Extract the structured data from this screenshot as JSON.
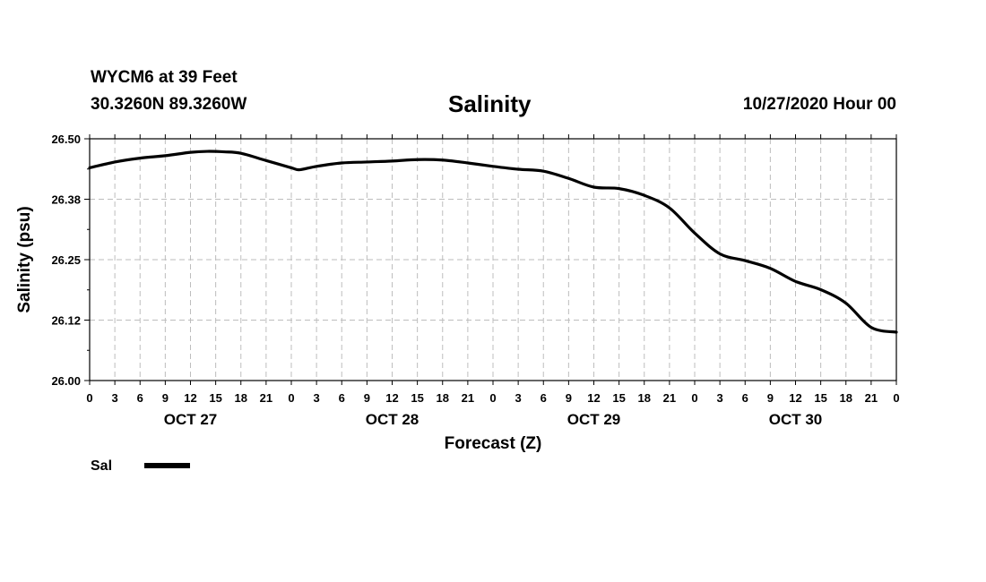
{
  "header": {
    "station": "WYCM6 at 39 Feet",
    "coords": "30.3260N 89.3260W",
    "title": "Salinity",
    "runtime": "10/27/2020 Hour 00"
  },
  "chart_data": {
    "type": "line",
    "title": "Salinity",
    "xlabel": "Forecast (Z)",
    "ylabel": "Salinity (psu)",
    "ylim": [
      26.0,
      26.5
    ],
    "xlim": [
      0,
      96
    ],
    "y_ticks": [
      26.0,
      26.125,
      26.25,
      26.375,
      26.5
    ],
    "y_tick_labels": [
      "26.00",
      "26.12",
      "26.25",
      "26.38",
      "26.50"
    ],
    "x_tick_labels": [
      "0",
      "3",
      "6",
      "9",
      "12",
      "15",
      "18",
      "21",
      "0",
      "3",
      "6",
      "9",
      "12",
      "15",
      "18",
      "21",
      "0",
      "3",
      "6",
      "9",
      "12",
      "15",
      "18",
      "21",
      "0",
      "3",
      "6",
      "9",
      "12",
      "15",
      "18",
      "21",
      "0"
    ],
    "day_labels": [
      "OCT 27",
      "OCT 28",
      "OCT 29",
      "OCT 30"
    ],
    "grid": true,
    "legend_position": "bottom-left",
    "series": [
      {
        "name": "Sal",
        "color": "#000000",
        "x": [
          0,
          3,
          6,
          9,
          12,
          14,
          16,
          18,
          21,
          24,
          25,
          27,
          30,
          33,
          36,
          39,
          42,
          45,
          48,
          51,
          54,
          57,
          60,
          63,
          66,
          69,
          72,
          75,
          78,
          81,
          84,
          87,
          90,
          93,
          96
        ],
        "y": [
          26.44,
          26.452,
          26.46,
          26.465,
          26.472,
          26.474,
          26.473,
          26.47,
          26.455,
          26.44,
          26.436,
          26.443,
          26.45,
          26.452,
          26.454,
          26.457,
          26.456,
          26.45,
          26.443,
          26.437,
          26.433,
          26.418,
          26.4,
          26.397,
          26.383,
          26.357,
          26.305,
          26.262,
          26.248,
          26.232,
          26.205,
          26.188,
          26.16,
          26.11,
          26.1
        ]
      }
    ]
  }
}
